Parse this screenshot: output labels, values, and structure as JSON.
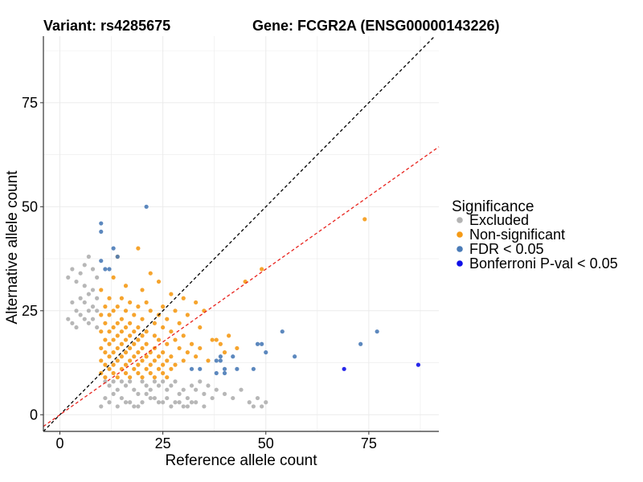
{
  "title": {
    "variant": "Variant: rs4285675",
    "gene": "Gene: FCGR2A (ENSG00000143226)"
  },
  "chart_data": {
    "type": "scatter",
    "xlabel": "Reference allele count",
    "ylabel": "Alternative allele count",
    "xlim": [
      -4,
      92
    ],
    "ylim": [
      -4,
      91
    ],
    "xticks": [
      0,
      25,
      50,
      75
    ],
    "yticks": [
      0,
      25,
      50,
      75
    ],
    "grid": true,
    "legend": {
      "title": "Significance",
      "placement": "right",
      "entries": [
        {
          "label": "Excluded",
          "color": "#b3b3b3"
        },
        {
          "label": "Non-significant",
          "color": "#f59a16"
        },
        {
          "label": "FDR < 0.05",
          "color": "#4a7bb7"
        },
        {
          "label": "Bonferroni P-val < 0.05",
          "color": "#1010e8"
        }
      ]
    },
    "reference_lines": [
      {
        "name": "y = x",
        "slope": 1.0,
        "intercept": 0,
        "color": "#000000",
        "dash": true
      },
      {
        "name": "fit",
        "slope": 0.7,
        "intercept": 0,
        "color": "#e8221c",
        "dash": true
      }
    ],
    "series": [
      {
        "name": "Excluded",
        "color": "#b3b3b3",
        "points": [
          [
            7,
            38
          ],
          [
            6,
            36
          ],
          [
            3,
            35
          ],
          [
            8,
            35
          ],
          [
            5,
            34
          ],
          [
            2,
            33
          ],
          [
            9,
            33
          ],
          [
            4,
            32
          ],
          [
            6,
            31
          ],
          [
            8,
            30
          ],
          [
            7,
            29
          ],
          [
            5,
            28
          ],
          [
            9,
            28
          ],
          [
            3,
            27
          ],
          [
            6,
            27
          ],
          [
            8,
            26
          ],
          [
            4,
            25
          ],
          [
            7,
            25
          ],
          [
            9,
            25
          ],
          [
            5,
            24
          ],
          [
            2,
            23
          ],
          [
            6,
            23
          ],
          [
            8,
            23
          ],
          [
            3,
            22
          ],
          [
            7,
            22
          ],
          [
            9,
            21
          ],
          [
            4,
            21
          ],
          [
            11,
            8
          ],
          [
            12,
            7
          ],
          [
            13,
            8
          ],
          [
            14,
            6
          ],
          [
            15,
            8
          ],
          [
            16,
            7
          ],
          [
            17,
            8
          ],
          [
            18,
            6
          ],
          [
            19,
            5
          ],
          [
            20,
            8
          ],
          [
            21,
            7
          ],
          [
            22,
            6
          ],
          [
            23,
            8
          ],
          [
            24,
            7
          ],
          [
            25,
            8
          ],
          [
            26,
            6
          ],
          [
            27,
            7
          ],
          [
            28,
            8
          ],
          [
            29,
            5
          ],
          [
            30,
            6
          ],
          [
            31,
            4
          ],
          [
            32,
            7
          ],
          [
            33,
            6
          ],
          [
            34,
            8
          ],
          [
            35,
            5
          ],
          [
            36,
            7
          ],
          [
            37,
            4
          ],
          [
            38,
            6
          ],
          [
            40,
            5
          ],
          [
            42,
            4
          ],
          [
            44,
            6
          ],
          [
            46,
            3
          ],
          [
            48,
            4
          ],
          [
            49,
            2
          ],
          [
            47,
            2
          ],
          [
            50,
            3
          ],
          [
            24,
            3
          ],
          [
            26,
            4
          ],
          [
            28,
            3
          ],
          [
            30,
            2
          ],
          [
            32,
            3
          ],
          [
            22,
            4
          ],
          [
            20,
            3
          ],
          [
            18,
            2
          ],
          [
            16,
            3
          ],
          [
            14,
            2
          ],
          [
            12,
            3
          ],
          [
            10,
            2
          ],
          [
            11,
            4
          ],
          [
            13,
            5
          ],
          [
            15,
            4
          ],
          [
            17,
            3
          ],
          [
            19,
            2
          ],
          [
            21,
            5
          ],
          [
            23,
            4
          ],
          [
            25,
            3
          ],
          [
            27,
            2
          ],
          [
            29,
            3
          ],
          [
            31,
            2
          ],
          [
            33,
            3
          ],
          [
            35,
            2
          ]
        ]
      },
      {
        "name": "Non-significant",
        "color": "#f59a16",
        "points": [
          [
            74,
            47
          ],
          [
            19,
            40
          ],
          [
            14,
            38
          ],
          [
            49,
            35
          ],
          [
            22,
            34
          ],
          [
            13,
            33
          ],
          [
            24,
            32
          ],
          [
            45,
            32
          ],
          [
            16,
            31
          ],
          [
            10,
            30
          ],
          [
            20,
            30
          ],
          [
            27,
            29
          ],
          [
            12,
            28
          ],
          [
            15,
            28
          ],
          [
            30,
            28
          ],
          [
            17,
            27
          ],
          [
            21,
            27
          ],
          [
            33,
            27
          ],
          [
            11,
            26
          ],
          [
            14,
            26
          ],
          [
            19,
            26
          ],
          [
            25,
            26
          ],
          [
            13,
            25
          ],
          [
            16,
            25
          ],
          [
            22,
            25
          ],
          [
            28,
            25
          ],
          [
            35,
            25
          ],
          [
            10,
            24
          ],
          [
            12,
            24
          ],
          [
            18,
            24
          ],
          [
            24,
            24
          ],
          [
            31,
            24
          ],
          [
            15,
            23
          ],
          [
            20,
            23
          ],
          [
            26,
            23
          ],
          [
            11,
            22
          ],
          [
            14,
            22
          ],
          [
            17,
            22
          ],
          [
            23,
            22
          ],
          [
            29,
            22
          ],
          [
            13,
            21
          ],
          [
            16,
            21
          ],
          [
            19,
            21
          ],
          [
            25,
            21
          ],
          [
            34,
            21
          ],
          [
            10,
            20
          ],
          [
            12,
            20
          ],
          [
            15,
            20
          ],
          [
            18,
            20
          ],
          [
            21,
            20
          ],
          [
            27,
            20
          ],
          [
            14,
            19
          ],
          [
            17,
            19
          ],
          [
            20,
            19
          ],
          [
            23,
            19
          ],
          [
            30,
            19
          ],
          [
            41,
            19
          ],
          [
            11,
            18
          ],
          [
            13,
            18
          ],
          [
            16,
            18
          ],
          [
            19,
            18
          ],
          [
            24,
            18
          ],
          [
            28,
            18
          ],
          [
            37,
            18
          ],
          [
            12,
            17
          ],
          [
            15,
            17
          ],
          [
            18,
            17
          ],
          [
            21,
            17
          ],
          [
            26,
            17
          ],
          [
            32,
            17
          ],
          [
            39,
            17
          ],
          [
            10,
            16
          ],
          [
            14,
            16
          ],
          [
            17,
            16
          ],
          [
            20,
            16
          ],
          [
            23,
            16
          ],
          [
            29,
            16
          ],
          [
            34,
            16
          ],
          [
            11,
            15
          ],
          [
            13,
            15
          ],
          [
            16,
            15
          ],
          [
            19,
            15
          ],
          [
            22,
            15
          ],
          [
            25,
            15
          ],
          [
            31,
            15
          ],
          [
            12,
            14
          ],
          [
            15,
            14
          ],
          [
            18,
            14
          ],
          [
            21,
            14
          ],
          [
            24,
            14
          ],
          [
            27,
            14
          ],
          [
            33,
            14
          ],
          [
            10,
            13
          ],
          [
            14,
            13
          ],
          [
            17,
            13
          ],
          [
            20,
            13
          ],
          [
            23,
            13
          ],
          [
            26,
            13
          ],
          [
            30,
            13
          ],
          [
            36,
            13
          ],
          [
            11,
            12
          ],
          [
            13,
            12
          ],
          [
            16,
            12
          ],
          [
            19,
            12
          ],
          [
            22,
            12
          ],
          [
            25,
            12
          ],
          [
            28,
            12
          ],
          [
            12,
            11
          ],
          [
            15,
            11
          ],
          [
            18,
            11
          ],
          [
            21,
            11
          ],
          [
            24,
            11
          ],
          [
            27,
            11
          ],
          [
            10,
            10
          ],
          [
            13,
            10
          ],
          [
            16,
            10
          ],
          [
            19,
            10
          ],
          [
            22,
            10
          ],
          [
            25,
            10
          ],
          [
            11,
            9
          ],
          [
            14,
            9
          ],
          [
            17,
            9
          ],
          [
            20,
            9
          ],
          [
            23,
            9
          ],
          [
            26,
            9
          ],
          [
            40,
            15
          ],
          [
            38,
            18
          ],
          [
            43,
            16
          ]
        ]
      },
      {
        "name": "FDR < 0.05",
        "color": "#4a7bb7",
        "points": [
          [
            10,
            46
          ],
          [
            21,
            50
          ],
          [
            10,
            44
          ],
          [
            13,
            40
          ],
          [
            14,
            38
          ],
          [
            10,
            37
          ],
          [
            11,
            35
          ],
          [
            12,
            35
          ],
          [
            54,
            20
          ],
          [
            77,
            20
          ],
          [
            48,
            17
          ],
          [
            49,
            17
          ],
          [
            73,
            17
          ],
          [
            50,
            15
          ],
          [
            57,
            14
          ],
          [
            39,
            14
          ],
          [
            42,
            14
          ],
          [
            39,
            13
          ],
          [
            38,
            13
          ],
          [
            40,
            11
          ],
          [
            32,
            11
          ],
          [
            34,
            11
          ],
          [
            43,
            11
          ],
          [
            47,
            11
          ],
          [
            38,
            10
          ],
          [
            40,
            10
          ]
        ]
      },
      {
        "name": "Bonferroni P-val < 0.05",
        "color": "#1010e8",
        "points": [
          [
            69,
            11
          ],
          [
            87,
            12
          ]
        ]
      }
    ]
  }
}
